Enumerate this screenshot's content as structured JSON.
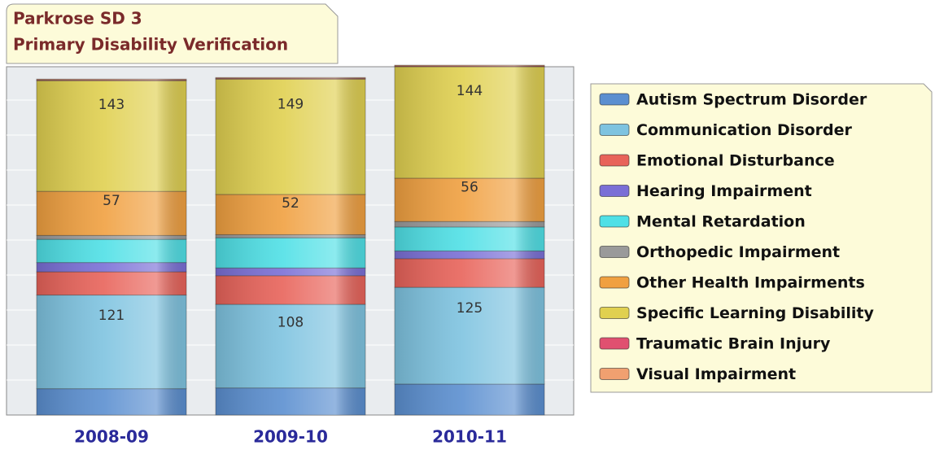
{
  "chart_data": {
    "type": "stacked_bar",
    "title": [
      "Parkrose SD 3",
      "Primary Disability Verification"
    ],
    "categories": [
      "2008-09",
      "2009-10",
      "2010-11"
    ],
    "ylim": [
      0,
      450
    ],
    "series": [
      {
        "name": "Autism Spectrum Disorder",
        "color": "#5b8fd0",
        "values": [
          34,
          35,
          40
        ]
      },
      {
        "name": "Communication Disorder",
        "color": "#7ec3e0",
        "values": [
          121,
          108,
          125
        ],
        "value_labels": [
          "121",
          "108",
          "125"
        ]
      },
      {
        "name": "Emotional Disturbance",
        "color": "#e8635a",
        "values": [
          30,
          37,
          37
        ]
      },
      {
        "name": "Hearing Impairment",
        "color": "#7a6fd6",
        "values": [
          12,
          10,
          10
        ]
      },
      {
        "name": "Mental Retardation",
        "color": "#4fe0e6",
        "values": [
          30,
          39,
          31
        ]
      },
      {
        "name": "Orthopedic Impairment",
        "color": "#9a9a9a",
        "values": [
          5,
          4,
          7
        ]
      },
      {
        "name": "Other Health Impairments",
        "color": "#f0a040",
        "values": [
          57,
          52,
          56
        ],
        "value_labels": [
          "57",
          "52",
          "56"
        ]
      },
      {
        "name": "Specific Learning Disability",
        "color": "#e0d050",
        "values": [
          143,
          149,
          144
        ],
        "value_labels": [
          "143",
          "149",
          "144"
        ]
      },
      {
        "name": "Traumatic Brain Injury",
        "color": "#e05070",
        "values": [
          1,
          1,
          1
        ]
      },
      {
        "name": "Visual Impairment",
        "color": "#f0a070",
        "values": [
          1,
          1,
          1
        ]
      }
    ]
  }
}
